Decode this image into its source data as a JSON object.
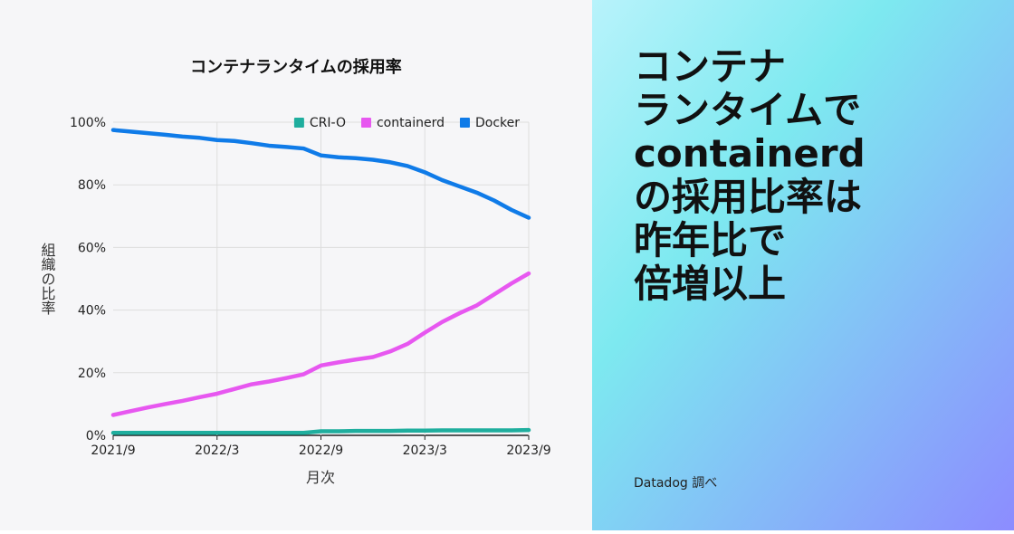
{
  "chart_data": {
    "type": "line",
    "title": "コンテナランタイムの採用率",
    "x": [
      "2021/9",
      null,
      null,
      null,
      null,
      null,
      "2022/3",
      null,
      null,
      null,
      null,
      null,
      "2022/9",
      null,
      null,
      null,
      null,
      null,
      "2023/3",
      null,
      null,
      null,
      null,
      null,
      "2023/9"
    ],
    "series": [
      {
        "name": "CRI-O",
        "color": "#1fae9e",
        "values": [
          0.8,
          0.8,
          0.8,
          0.8,
          0.8,
          0.8,
          0.8,
          0.8,
          0.8,
          0.8,
          0.8,
          0.8,
          1.3,
          1.3,
          1.4,
          1.4,
          1.4,
          1.5,
          1.5,
          1.6,
          1.6,
          1.6,
          1.6,
          1.6,
          1.7
        ]
      },
      {
        "name": "containerd",
        "color": "#e757f0",
        "values": [
          6.5,
          7.7,
          8.9,
          10,
          11,
          12.2,
          13.3,
          14.8,
          16.3,
          17.2,
          18.3,
          19.5,
          22.3,
          23.3,
          24.2,
          25,
          26.8,
          29.2,
          32.8,
          36.2,
          39,
          41.5,
          45,
          48.5,
          51.7
        ]
      },
      {
        "name": "Docker",
        "color": "#0f7be8",
        "values": [
          97.5,
          97,
          96.5,
          96,
          95.4,
          95,
          94.3,
          94,
          93.3,
          92.5,
          92.1,
          91.6,
          89.4,
          88.8,
          88.5,
          88,
          87.2,
          86,
          84,
          81.5,
          79.5,
          77.5,
          75,
          72,
          69.5
        ]
      }
    ],
    "ylim": [
      0,
      100
    ],
    "yticks": [
      {
        "value": 0,
        "label": "0%"
      },
      {
        "value": 20,
        "label": "20%"
      },
      {
        "value": 40,
        "label": "40%"
      },
      {
        "value": 60,
        "label": "60%"
      },
      {
        "value": 80,
        "label": "80%"
      },
      {
        "value": 100,
        "label": "100%"
      }
    ],
    "xlabel": "月次",
    "ylabel": "組織の比率",
    "grid": true,
    "legend": "top-right"
  },
  "headline": [
    "コンテナ",
    "ランタイムで",
    "containerd",
    "の採用比率は",
    "昨年比で",
    "倍増以上"
  ],
  "source": "Datadog 調べ"
}
